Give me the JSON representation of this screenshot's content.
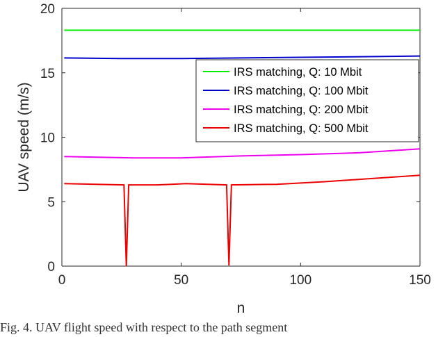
{
  "chart_data": {
    "type": "line",
    "title": "",
    "xlabel": "n",
    "ylabel": "UAV speed (m/s)",
    "xlim": [
      0,
      150
    ],
    "ylim": [
      0,
      20
    ],
    "xticks": [
      0,
      50,
      100,
      150
    ],
    "yticks": [
      0,
      5,
      10,
      15,
      20
    ],
    "grid": false,
    "legend_position": "top-right",
    "series": [
      {
        "name": "IRS matching, Q: 10 Mbit",
        "color": "#00ee00",
        "x": [
          1,
          150
        ],
        "y": [
          18.3,
          18.3
        ]
      },
      {
        "name": "IRS matching, Q: 100 Mbit",
        "color": "#0000cc",
        "x": [
          1,
          25,
          50,
          75,
          100,
          125,
          150
        ],
        "y": [
          16.15,
          16.1,
          16.1,
          16.15,
          16.2,
          16.25,
          16.3
        ]
      },
      {
        "name": "IRS matching, Q: 200 Mbit",
        "color": "#ee00ee",
        "x": [
          1,
          15,
          30,
          50,
          75,
          100,
          125,
          150
        ],
        "y": [
          8.5,
          8.45,
          8.4,
          8.4,
          8.55,
          8.65,
          8.8,
          9.1
        ]
      },
      {
        "name": "IRS matching, Q: 500 Mbit",
        "color": "#ee0000",
        "x": [
          1,
          26,
          27,
          28,
          40,
          52,
          69,
          70,
          71,
          90,
          110,
          130,
          150
        ],
        "y": [
          6.4,
          6.3,
          0,
          6.3,
          6.3,
          6.4,
          6.3,
          0.05,
          6.3,
          6.35,
          6.55,
          6.8,
          7.05
        ]
      }
    ]
  },
  "caption_text": "Fig. 4. UAV flight speed with respect to the path segment"
}
